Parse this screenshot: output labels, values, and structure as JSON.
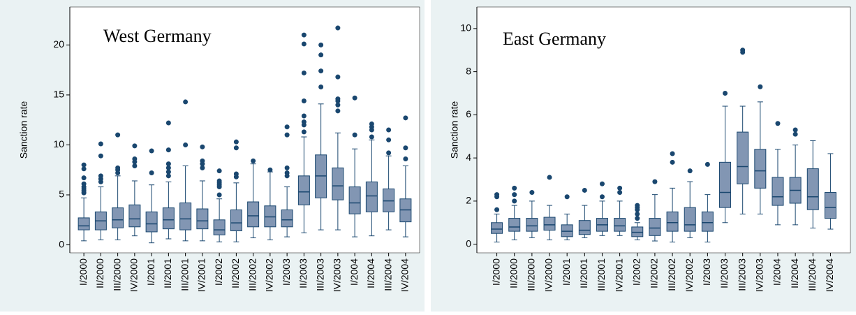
{
  "chart_data": [
    {
      "type": "box",
      "title": "West Germany",
      "y_label": "Sanction rate",
      "box_color": "#8296b3",
      "line_color": "#1a476f",
      "categories": [
        "I/2000",
        "II/2000",
        "III/2000",
        "IV/2000",
        "I/2001",
        "II/2001",
        "III/2001",
        "IV/2001",
        "I/2002",
        "II/2002",
        "III/2002",
        "IV/2002",
        "I/2003",
        "II/2003",
        "III/2003",
        "IV/2003",
        "I/2004",
        "II/2004",
        "III/2004",
        "IV/2004"
      ],
      "whislo": [
        0.4,
        0.5,
        0.5,
        0.9,
        0.2,
        0.6,
        0.4,
        0.4,
        0.3,
        0.3,
        0.7,
        0.5,
        0.8,
        1.2,
        1.5,
        1.5,
        0.8,
        0.9,
        1.5,
        0.8
      ],
      "q1": [
        1.5,
        1.5,
        1.7,
        1.8,
        1.3,
        1.6,
        1.5,
        1.6,
        1.0,
        1.4,
        1.8,
        1.8,
        1.8,
        4.0,
        4.7,
        4.5,
        3.1,
        3.3,
        3.3,
        2.3
      ],
      "median": [
        1.9,
        2.4,
        2.5,
        2.6,
        2.1,
        2.5,
        2.6,
        2.4,
        1.5,
        2.2,
        2.9,
        2.8,
        2.5,
        5.3,
        6.9,
        5.9,
        4.2,
        4.9,
        4.4,
        3.5
      ],
      "q3": [
        2.7,
        3.3,
        3.7,
        4.0,
        3.3,
        3.7,
        4.2,
        3.6,
        2.5,
        3.5,
        4.3,
        3.9,
        3.5,
        6.9,
        9.0,
        7.7,
        5.8,
        6.3,
        5.6,
        4.6
      ],
      "whishi": [
        4.7,
        5.8,
        6.9,
        6.4,
        6.0,
        6.3,
        7.9,
        6.4,
        4.6,
        6.2,
        8.1,
        7.3,
        5.8,
        10.8,
        14.1,
        11.2,
        9.6,
        10.5,
        8.9,
        7.9
      ],
      "outliers": [
        [
          5.2,
          5.4,
          5.6,
          5.8,
          6.1,
          6.7,
          7.6,
          8.0
        ],
        [
          6.3,
          6.6,
          6.9,
          8.9,
          10.1
        ],
        [
          7.2,
          7.5,
          7.7,
          11.0
        ],
        [
          7.9,
          8.3,
          8.6,
          9.9
        ],
        [
          7.2,
          9.4
        ],
        [
          6.9,
          7.3,
          7.7,
          8.1,
          9.5,
          12.2
        ],
        [
          10.0,
          14.3
        ],
        [
          7.7,
          8.1,
          8.4,
          9.8
        ],
        [
          5.0,
          5.8,
          6.0,
          6.2,
          6.4,
          7.4
        ],
        [
          6.8,
          7.1,
          9.7,
          10.3
        ],
        [
          8.4
        ],
        [
          7.5
        ],
        [
          6.9,
          7.2,
          7.7,
          11.0,
          11.8
        ],
        [
          11.3,
          12.0,
          12.3,
          12.9,
          14.4,
          17.2,
          20.1,
          21.0
        ],
        [
          15.8,
          17.4,
          19.0,
          20.0
        ],
        [
          13.4,
          14.0,
          14.4,
          14.6,
          16.8,
          21.7
        ],
        [
          11.0,
          14.7
        ],
        [
          10.8,
          11.5,
          11.8,
          12.1
        ],
        [
          9.2,
          10.5,
          11.5
        ],
        [
          8.6,
          9.7,
          12.7
        ]
      ],
      "ylim": [
        -0.8,
        23.8
      ],
      "yticks": [
        0,
        5,
        10,
        15,
        20
      ]
    },
    {
      "type": "box",
      "title": "East Germany",
      "y_label": "Sanction rate",
      "box_color": "#8296b3",
      "line_color": "#1a476f",
      "categories": [
        "I/2000",
        "II/2000",
        "III/2000",
        "IV/2000",
        "I/2001",
        "II/2001",
        "III/2001",
        "IV/2001",
        "I/2002",
        "II/2002",
        "III/2002",
        "IV/2002",
        "I/2003",
        "II/2003",
        "III/2003",
        "IV/2003",
        "I/2004",
        "II/2004",
        "III/2004",
        "IV/2004"
      ],
      "whislo": [
        0.1,
        0.2,
        0.3,
        0.2,
        0.2,
        0.3,
        0.4,
        0.4,
        0.2,
        0.15,
        0.1,
        0.3,
        0.1,
        1.0,
        1.4,
        1.4,
        0.9,
        0.9,
        0.75,
        0.7
      ],
      "q1": [
        0.5,
        0.6,
        0.6,
        0.65,
        0.35,
        0.45,
        0.6,
        0.6,
        0.35,
        0.4,
        0.6,
        0.6,
        0.6,
        1.7,
        2.8,
        2.6,
        1.8,
        1.9,
        1.6,
        1.2
      ],
      "median": [
        0.7,
        0.8,
        0.85,
        0.9,
        0.6,
        0.65,
        0.9,
        0.85,
        0.55,
        0.75,
        1.0,
        0.9,
        1.0,
        2.4,
        3.6,
        3.4,
        2.2,
        2.5,
        2.2,
        1.7
      ],
      "q3": [
        1.0,
        1.2,
        1.2,
        1.25,
        0.9,
        1.1,
        1.2,
        1.2,
        0.8,
        1.2,
        1.5,
        1.7,
        1.5,
        3.8,
        5.2,
        4.4,
        3.1,
        3.1,
        3.5,
        2.4
      ],
      "whishi": [
        1.4,
        1.8,
        2.0,
        1.8,
        1.4,
        1.8,
        2.0,
        2.0,
        1.0,
        2.3,
        2.6,
        2.9,
        2.3,
        6.4,
        6.4,
        6.6,
        4.4,
        4.6,
        4.8,
        4.2
      ],
      "outliers": [
        [
          1.6,
          2.2,
          2.3
        ],
        [
          2.0,
          2.3,
          2.6
        ],
        [
          2.4
        ],
        [
          3.1
        ],
        [
          2.2
        ],
        [
          2.5
        ],
        [
          2.2,
          2.8
        ],
        [
          2.4,
          2.6
        ],
        [
          1.2,
          1.4,
          1.6,
          1.7,
          1.8
        ],
        [
          2.9
        ],
        [
          3.8,
          4.2
        ],
        [
          3.4
        ],
        [
          3.7
        ],
        [
          7.0
        ],
        [
          8.9,
          9.0
        ],
        [
          7.3
        ],
        [
          5.6
        ],
        [
          5.1,
          5.3
        ],
        [],
        []
      ],
      "ylim": [
        -0.4,
        11
      ],
      "yticks": [
        0,
        2,
        4,
        6,
        8,
        10
      ]
    }
  ]
}
